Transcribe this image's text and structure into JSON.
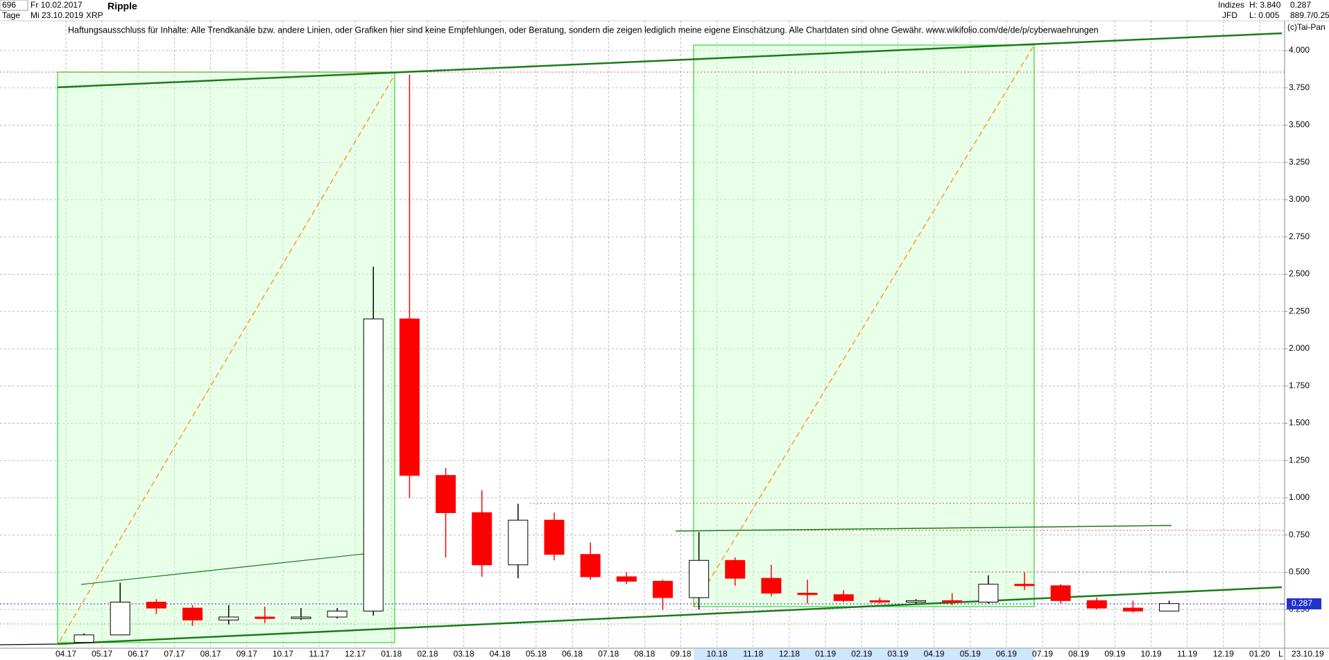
{
  "header": {
    "count": "696",
    "from": "Fr 10.02.2017",
    "period": "Tage",
    "to": "Mi 23.10.2019",
    "name": "Ripple",
    "symbol": "XRP",
    "market": "Indizes",
    "broker": "JFD",
    "high": "H: 3.840",
    "low": "L: 0.005",
    "last": "0.287",
    "extra": "889.7/0.25",
    "disclaimer": "Haftungsausschluss für Inhalte: Alle Trendkanäle bzw. andere Linien, oder Grafiken hier sind keine Empfehlungen, oder Beratung, sondern die zeigen lediglich meine eigene Einschätzung. Alle Chartdaten sind ohne Gewähr.  www.wikifolio.com/de/de/p/cyberwaehrungen",
    "copyright": "(c)Tai-Pan",
    "end_date": "23.10.19",
    "scale_mode": "L"
  },
  "chart_data": {
    "type": "candlestick",
    "title": "Ripple",
    "categories": [
      "04.17",
      "05.17",
      "06.17",
      "07.17",
      "08.17",
      "09.17",
      "10.17",
      "11.17",
      "12.17",
      "01.18",
      "02.18",
      "03.18",
      "04.18",
      "05.18",
      "06.18",
      "07.18",
      "08.18",
      "09.18",
      "10.18",
      "11.18",
      "12.18",
      "01.19",
      "02.19",
      "03.19",
      "04.19",
      "05.19",
      "06.19",
      "07.19",
      "08.19",
      "09.19",
      "10.19",
      "11.19",
      "12.19",
      "01.20"
    ],
    "open": [
      0.03,
      0.08,
      0.3,
      0.26,
      0.18,
      0.2,
      0.19,
      0.2,
      0.24,
      2.2,
      1.15,
      0.9,
      0.55,
      0.85,
      0.62,
      0.47,
      0.44,
      0.33,
      0.58,
      0.46,
      0.36,
      0.35,
      0.31,
      0.3,
      0.31,
      0.3,
      0.42,
      0.41,
      0.31,
      0.26,
      0.24,
      null,
      null,
      null
    ],
    "high": [
      0.09,
      0.43,
      0.32,
      0.28,
      0.28,
      0.27,
      0.26,
      0.26,
      2.55,
      3.84,
      1.2,
      1.05,
      0.96,
      0.9,
      0.7,
      0.5,
      0.45,
      0.77,
      0.6,
      0.55,
      0.45,
      0.38,
      0.33,
      0.32,
      0.36,
      0.48,
      0.5,
      0.42,
      0.33,
      0.31,
      0.31,
      null,
      null,
      null
    ],
    "low": [
      0.03,
      0.08,
      0.22,
      0.14,
      0.15,
      0.16,
      0.18,
      0.19,
      0.21,
      1.0,
      0.6,
      0.47,
      0.46,
      0.58,
      0.45,
      0.42,
      0.25,
      0.25,
      0.41,
      0.34,
      0.29,
      0.3,
      0.29,
      0.29,
      0.28,
      0.29,
      0.38,
      0.29,
      0.25,
      0.23,
      0.24,
      null,
      null,
      null
    ],
    "close": [
      0.08,
      0.3,
      0.26,
      0.18,
      0.2,
      0.19,
      0.2,
      0.24,
      2.2,
      1.15,
      0.9,
      0.55,
      0.85,
      0.62,
      0.47,
      0.44,
      0.33,
      0.58,
      0.46,
      0.36,
      0.35,
      0.31,
      0.3,
      0.31,
      0.3,
      0.42,
      0.41,
      0.31,
      0.26,
      0.24,
      0.29,
      null,
      null,
      null
    ],
    "up_color": "#000000",
    "down_color": "#ff0000",
    "ylim": [
      0,
      4.2
    ],
    "yticks": [
      {
        "value": 0.25,
        "label": "0.250"
      },
      {
        "value": 0.5,
        "label": "0.500"
      },
      {
        "value": 0.75,
        "label": "0.750"
      },
      {
        "value": 1,
        "label": "1.000"
      },
      {
        "value": 1.25,
        "label": "1.250"
      },
      {
        "value": 1.5,
        "label": "1.500"
      },
      {
        "value": 1.75,
        "label": "1.750"
      },
      {
        "value": 2,
        "label": "2.000"
      },
      {
        "value": 2.25,
        "label": "2.250"
      },
      {
        "value": 2.5,
        "label": "2.500"
      },
      {
        "value": 2.75,
        "label": "2.750"
      },
      {
        "value": 3,
        "label": "3.000"
      },
      {
        "value": 3.25,
        "label": "3.250"
      },
      {
        "value": 3.5,
        "label": "3.500"
      },
      {
        "value": 3.75,
        "label": "3.750"
      },
      {
        "value": 4,
        "label": "4.000"
      }
    ],
    "last_price": 0.287,
    "grid": true
  }
}
